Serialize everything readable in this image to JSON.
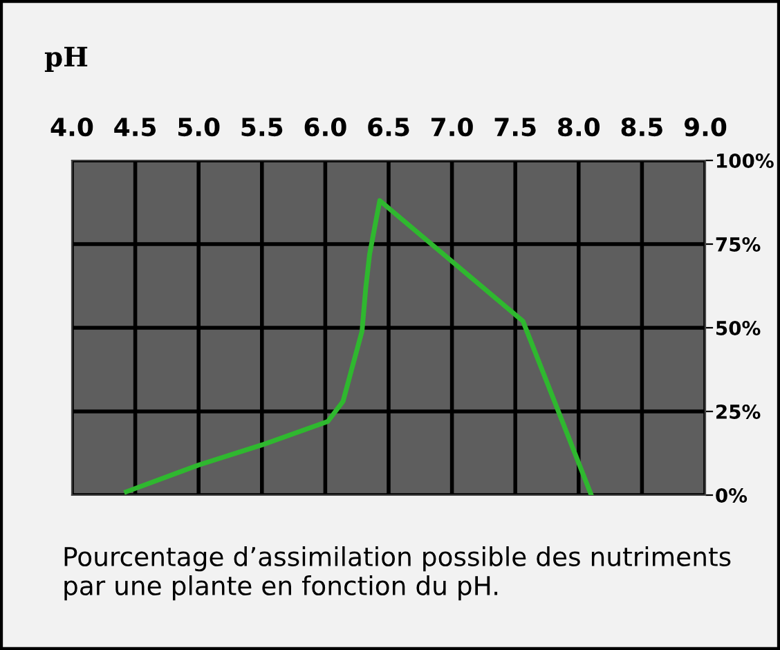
{
  "chart_data": {
    "type": "line",
    "title": "pH",
    "x": [
      4.43,
      5.0,
      5.5,
      6.02,
      6.14,
      6.29,
      6.32,
      6.35,
      6.43,
      7.56,
      8.1
    ],
    "series": [
      {
        "color": "#2fb82f",
        "values": [
          1,
          9,
          15,
          22,
          28,
          49,
          62,
          72,
          88,
          52,
          0
        ]
      }
    ],
    "xlim": [
      4,
      9
    ],
    "xticks": [
      {
        "value": 4,
        "label": "4.0"
      },
      {
        "value": 4.5,
        "label": "4.5"
      },
      {
        "value": 5,
        "label": "5.0"
      },
      {
        "value": 5.5,
        "label": "5.5"
      },
      {
        "value": 6,
        "label": "6.0"
      },
      {
        "value": 6.5,
        "label": "6.5"
      },
      {
        "value": 7,
        "label": "7.0"
      },
      {
        "value": 7.5,
        "label": "7.5"
      },
      {
        "value": 8,
        "label": "8.0"
      },
      {
        "value": 8.5,
        "label": "8.5"
      },
      {
        "value": 9,
        "label": "9.0"
      }
    ],
    "ylim": [
      0,
      100
    ],
    "yticks": [
      {
        "value": 0,
        "label": "0%"
      },
      {
        "value": 25,
        "label": "25%"
      },
      {
        "value": 50,
        "label": "50%"
      },
      {
        "value": 75,
        "label": "75%"
      },
      {
        "value": 100,
        "label": "100%"
      }
    ],
    "grid": true,
    "line_style": "solid",
    "annotations": [
      "Pourcentage d’assimilation possible des nutriments par une plante en fonction du pH."
    ]
  }
}
